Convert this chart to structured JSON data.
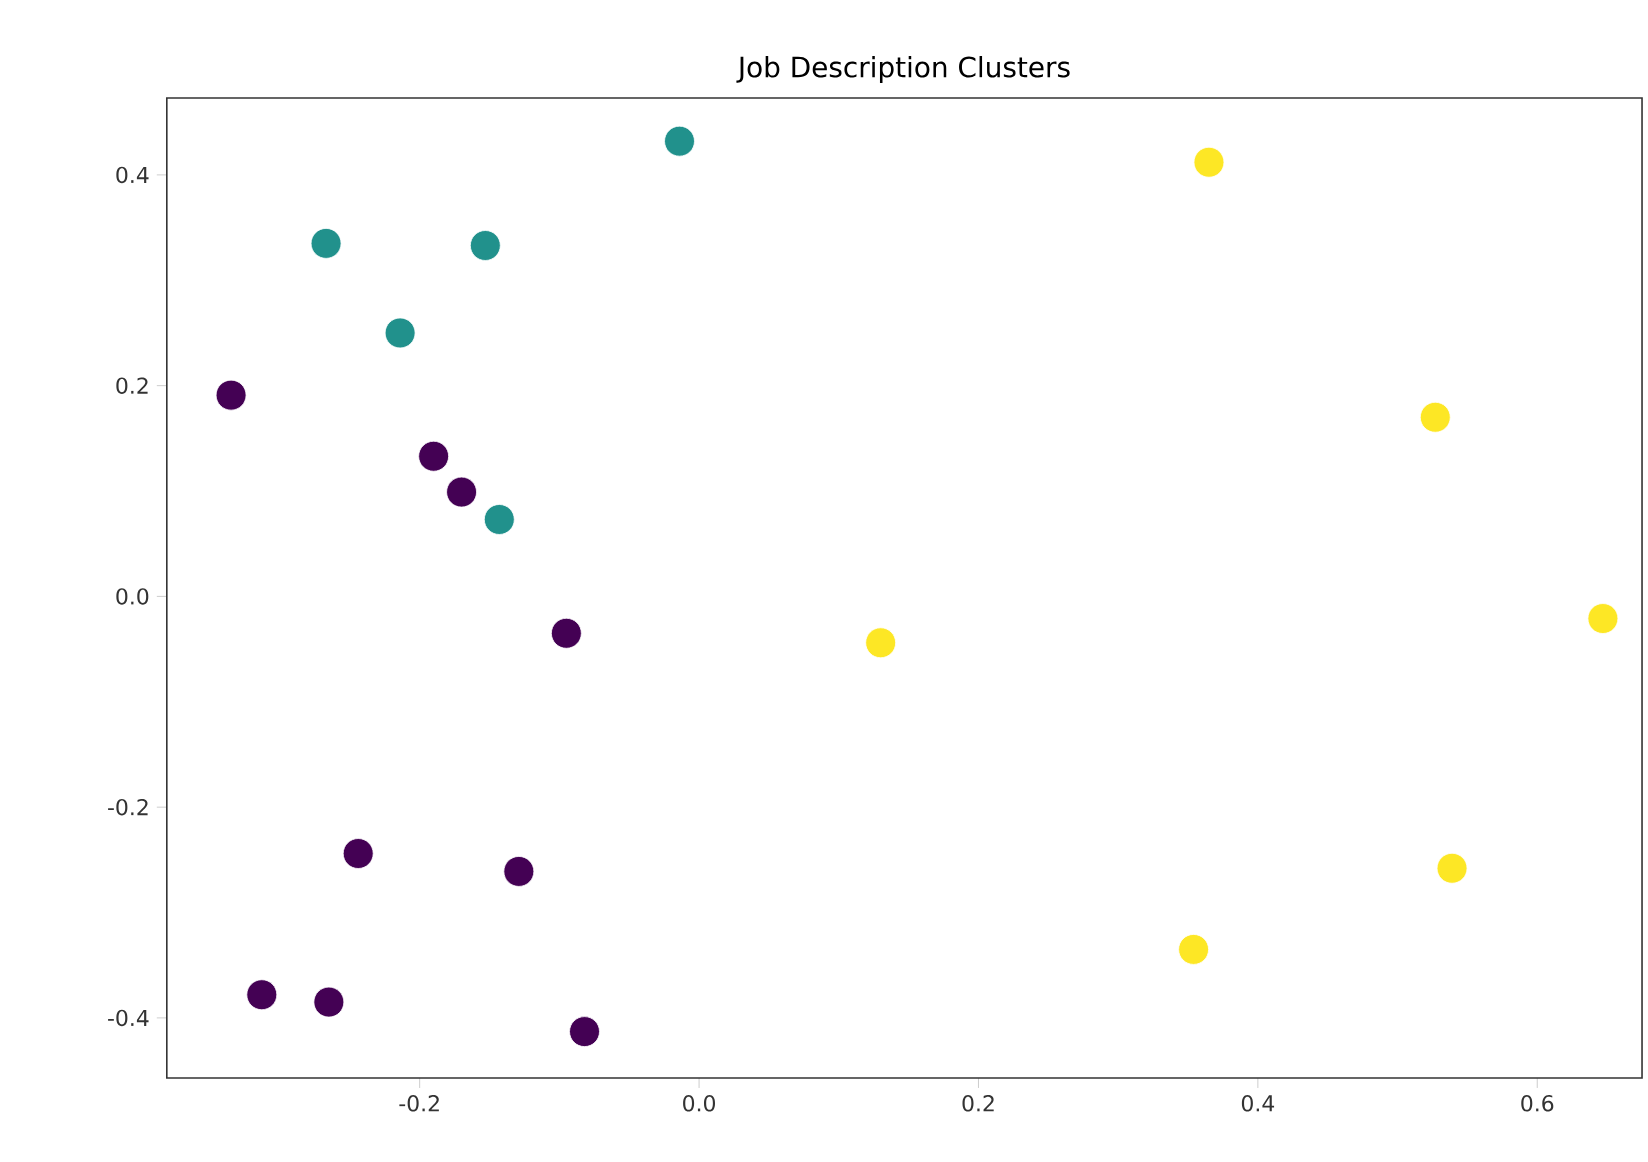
{
  "chart_data": {
    "type": "scatter",
    "title": "Job Description Clusters",
    "xlim": [
      -0.381,
      0.675
    ],
    "ylim": [
      -0.457,
      0.473
    ],
    "xticks": [
      -0.2,
      {
        "value": 0,
        "label": "0.0"
      },
      0.2,
      0.4,
      0.6
    ],
    "yticks": [
      -0.4,
      -0.2,
      {
        "value": 0,
        "label": "0.0"
      },
      0.2,
      0.4
    ],
    "grid": false,
    "series": [
      {
        "color": "#440154",
        "x": [
          -0.335,
          -0.19,
          -0.17,
          -0.095,
          -0.244,
          -0.129,
          -0.313,
          -0.265,
          -0.082
        ],
        "values": [
          0.191,
          0.133,
          0.099,
          -0.035,
          -0.244,
          -0.261,
          -0.378,
          -0.385,
          -0.413
        ]
      },
      {
        "color": "#21918c",
        "x": [
          -0.014,
          -0.267,
          -0.153,
          -0.214,
          -0.143
        ],
        "values": [
          0.432,
          0.335,
          0.333,
          0.25,
          0.073
        ]
      },
      {
        "color": "#fde725",
        "x": [
          0.365,
          0.527,
          0.13,
          0.647,
          0.539,
          0.354
        ],
        "values": [
          0.412,
          0.17,
          -0.044,
          -0.021,
          -0.258,
          -0.335
        ]
      }
    ]
  }
}
